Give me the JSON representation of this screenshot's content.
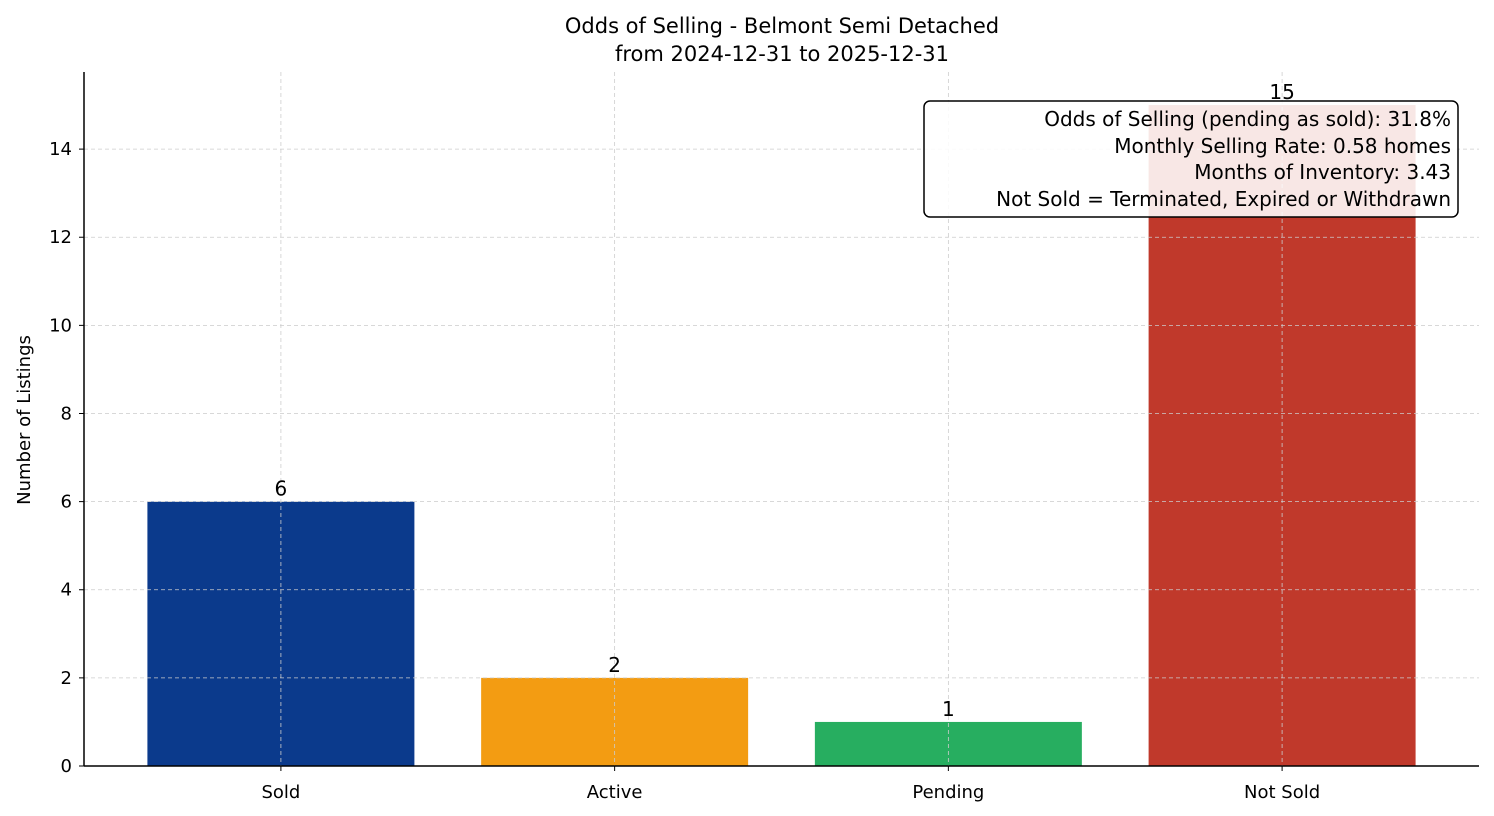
{
  "chart_data": {
    "type": "bar",
    "title": "Odds of Selling - Belmont Semi Detached",
    "subtitle": "from 2024-12-31 to 2025-12-31",
    "xlabel": "",
    "ylabel": "Number of Listings",
    "categories": [
      "Sold",
      "Active",
      "Pending",
      "Not Sold"
    ],
    "values": [
      6,
      2,
      1,
      15
    ],
    "data_labels": [
      "6",
      "2",
      "1",
      "15"
    ],
    "colors": [
      "#0b3a8c",
      "#f39c12",
      "#27ae60",
      "#c0392b"
    ],
    "ylim": [
      0,
      15.75
    ],
    "yticks": [
      0,
      2,
      4,
      6,
      8,
      10,
      12,
      14
    ],
    "grid": true,
    "annotation": {
      "placement": "top-right",
      "lines": [
        "Odds of Selling (pending as sold): 31.8%",
        "Monthly Selling Rate: 0.58 homes",
        "Months of Inventory: 3.43",
        "Not Sold = Terminated, Expired or Withdrawn"
      ]
    }
  }
}
